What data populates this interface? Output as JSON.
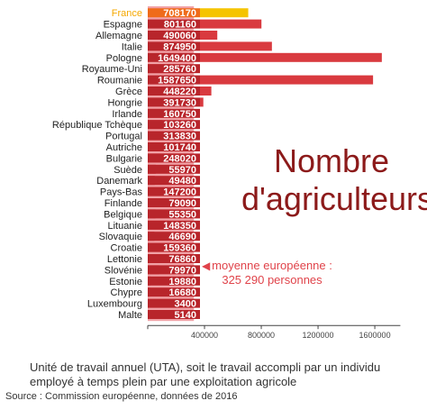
{
  "chart_data": {
    "type": "bar",
    "orientation": "horizontal",
    "categories": [
      "France",
      "Espagne",
      "Allemagne",
      "Italie",
      "Pologne",
      "Royaume-Uni",
      "Roumanie",
      "Grèce",
      "Hongrie",
      "Irlande",
      "République Tchèque",
      "Portugal",
      "Autriche",
      "Bulgarie",
      "Suède",
      "Danemark",
      "Pays-Bas",
      "Finlande",
      "Belgique",
      "Lituanie",
      "Slovaquie",
      "Croatie",
      "Lettonie",
      "Slovénie",
      "Estonie",
      "Chypre",
      "Luxembourg",
      "Malte"
    ],
    "values": [
      708170,
      801160,
      490060,
      874950,
      1649400,
      285760,
      1587650,
      448220,
      391730,
      160750,
      103260,
      313830,
      101740,
      248020,
      55970,
      49480,
      147200,
      79090,
      55350,
      148350,
      46690,
      159360,
      76860,
      79970,
      19880,
      16680,
      3400,
      5140
    ],
    "value_labels": [
      "708170",
      "801160",
      "490060",
      "874950",
      "1649400",
      "285760",
      "1587650",
      "448220",
      "391730",
      "160750",
      "103260",
      "313830",
      "101740",
      "248020",
      "55970",
      "49480",
      "147200",
      "79090",
      "55350",
      "148350",
      "46690",
      "159360",
      "76860",
      "79970",
      "19880",
      "16680",
      "3400",
      "5140"
    ],
    "highlight": "France",
    "average": 325290,
    "xlim": [
      0,
      1780000
    ],
    "xticks": [
      400000,
      800000,
      1200000,
      1600000
    ],
    "xtick_labels": [
      "400000",
      "800000",
      "1200000",
      "1600000"
    ],
    "colors": {
      "bar": "#d93a3f",
      "value_box": "#b8252b",
      "highlight_bar": "#f5c400",
      "highlight_text": "#f5a800",
      "average_band": "#f1a1a6",
      "title": "#8c1a1a",
      "average_text": "#e0434a"
    }
  },
  "title_lines": [
    "Nombre",
    "d'agriculteurs"
  ],
  "average_label_lines": [
    "moyenne européenne :",
    "325 290 personnes"
  ],
  "caption": "Unité de travail annuel (UTA), soit le travail accompli par un individu employé à temps plein par une exploitation agricole",
  "source": "Source : Commission européenne, données de 2016"
}
